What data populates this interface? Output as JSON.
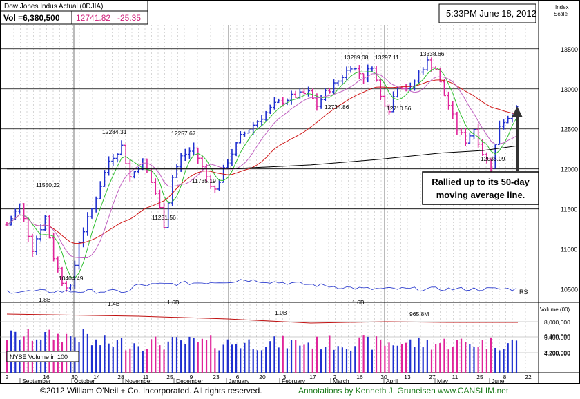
{
  "header": {
    "title": "Dow Jones Indus Actual  (0DJIA)",
    "vol_label": "Vol =6,380,500",
    "price": "12741.82",
    "change": "-25.35",
    "timestamp": "5:33PM June 18, 2012",
    "scale_label_1": "Index",
    "scale_label_2": "Scale"
  },
  "annotation_box": {
    "line1": "Rallied up to its 50-day",
    "line2": "moving average line."
  },
  "footer": {
    "copyright": "©2012 William O'Neil + Co. Incorporated. All rights reserved.",
    "annotations": "Annotations by Kenneth J. Gruneisen www.CANSLIM.net"
  },
  "colors": {
    "up_bar": "#1f2fd0",
    "down_bar": "#e0249a",
    "ma_50": "#2fbf2f",
    "ma_10": "#c060c0",
    "ma_red": "#d01818",
    "ma_200": "#000000",
    "rs_line": "#2233cc",
    "price_text": "#d0207a",
    "footer_green": "#1a7a1a"
  },
  "chart_data": {
    "type": "candlestick",
    "price_axis": {
      "ticks": [
        10500,
        11000,
        11500,
        12000,
        12500,
        13000,
        13500
      ],
      "range": [
        10350,
        13800
      ]
    },
    "volume_axis": {
      "ticks": [
        "8,000,000",
        "6,400,000",
        "4,200,000",
        "2,200,000"
      ],
      "label": "Volume (00)",
      "tag": "NYSE Volume in 100"
    },
    "dates": [
      "2",
      "16",
      "30",
      "14",
      "28",
      "11",
      "25",
      "9",
      "23",
      "6",
      "20",
      "3",
      "17",
      "2",
      "16",
      "30",
      "13",
      "27",
      "11",
      "25",
      "8",
      "22"
    ],
    "months": [
      "September",
      "October",
      "November",
      "December",
      "January",
      "February",
      "March",
      "April",
      "May",
      "June"
    ],
    "price_labels": [
      {
        "value": "11550.22"
      },
      {
        "value": "12284.31"
      },
      {
        "value": "12257.67"
      },
      {
        "value": "11735.19"
      },
      {
        "value": "11231.56"
      },
      {
        "value": "10404.49"
      },
      {
        "value": "13289.08"
      },
      {
        "value": "13297.11"
      },
      {
        "value": "12734.86"
      },
      {
        "value": "12710.56"
      },
      {
        "value": "13338.66"
      },
      {
        "value": "12035.09"
      }
    ],
    "volume_labels": [
      "1.8B",
      "1.4B",
      "1.6B",
      "1.0B",
      "1.6B",
      "965.8M"
    ],
    "rs_label": "RS",
    "series": [
      {
        "name": "Price (daily OHLC)",
        "key_points": [
          {
            "date": "Sep",
            "value": 11550
          },
          {
            "date": "Oct 3",
            "value": 10404
          },
          {
            "date": "Oct 27",
            "value": 12284
          },
          {
            "date": "Nov 25",
            "value": 11231
          },
          {
            "date": "Dec 5",
            "value": 12257
          },
          {
            "date": "Dec 19",
            "value": 11735
          },
          {
            "date": "Feb 1",
            "value": 12734
          },
          {
            "date": "Mar 16",
            "value": 13289
          },
          {
            "date": "Apr 2",
            "value": 13297
          },
          {
            "date": "Apr 10",
            "value": 12710
          },
          {
            "date": "May 1",
            "value": 13338
          },
          {
            "date": "Jun 4",
            "value": 12035
          },
          {
            "date": "Jun 18",
            "value": 12741
          }
        ]
      },
      {
        "name": "50-day MA"
      },
      {
        "name": "200-day MA"
      },
      {
        "name": "RS line"
      }
    ]
  }
}
